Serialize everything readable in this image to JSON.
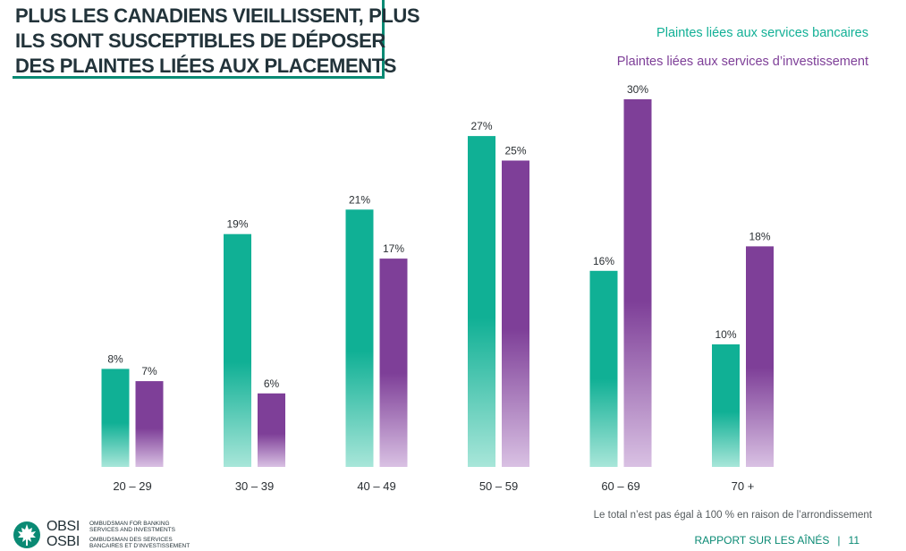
{
  "header": {
    "title_lines": [
      "PLUS LES CANADIENS VIEILLISSENT, PLUS",
      "ILS SONT SUSCEPTIBLES DE DÉPOSER",
      "DES PLAINTES LIÉES AUX PLACEMENTS"
    ]
  },
  "legend": {
    "banking": "Plaintes liées aux services bancaires",
    "investment": "Plaintes liées aux services d’investissement"
  },
  "colors": {
    "banking": "#10b095",
    "investment": "#7e3f98",
    "accent": "#0a8a74",
    "title": "#22333a"
  },
  "chart_data": {
    "type": "bar",
    "title": "PLUS LES CANADIENS VIEILLISSENT, PLUS ILS SONT SUSCEPTIBLES DE DÉPOSER DES PLAINTES LIÉES AUX PLACEMENTS",
    "xlabel": "",
    "ylabel": "",
    "categories": [
      "20 – 29",
      "30 – 39",
      "40 – 49",
      "50 – 59",
      "60 – 69",
      "70 +"
    ],
    "series": [
      {
        "name": "Plaintes liées aux services bancaires",
        "values": [
          8,
          19,
          21,
          27,
          16,
          10
        ],
        "labels": [
          "8%",
          "19%",
          "21%",
          "27%",
          "16%",
          "10%"
        ]
      },
      {
        "name": "Plaintes liées aux services d’investissement",
        "values": [
          7,
          6,
          17,
          25,
          30,
          18
        ],
        "labels": [
          "7%",
          "6%",
          "17%",
          "25%",
          "30%",
          "18%"
        ]
      }
    ],
    "unit": "%",
    "ylim": [
      0,
      30
    ],
    "grid": false,
    "legend_position": "top-right"
  },
  "footer": {
    "note": "Le total n’est pas égal à 100 % en raison de l’arrondissement",
    "report": "RAPPORT SUR LES AÎNÉS",
    "separator": "|",
    "page_number": "11"
  },
  "logo": {
    "acronym_en": "OBSI",
    "acronym_fr": "OSBI",
    "name_en_line1": "OMBUDSMAN FOR BANKING",
    "name_en_line2": "SERVICES AND INVESTMENTS",
    "name_fr_line1": "OMBUDSMAN DES SERVICES",
    "name_fr_line2": "BANCAIRES ET D’INVESTISSEMENT"
  }
}
